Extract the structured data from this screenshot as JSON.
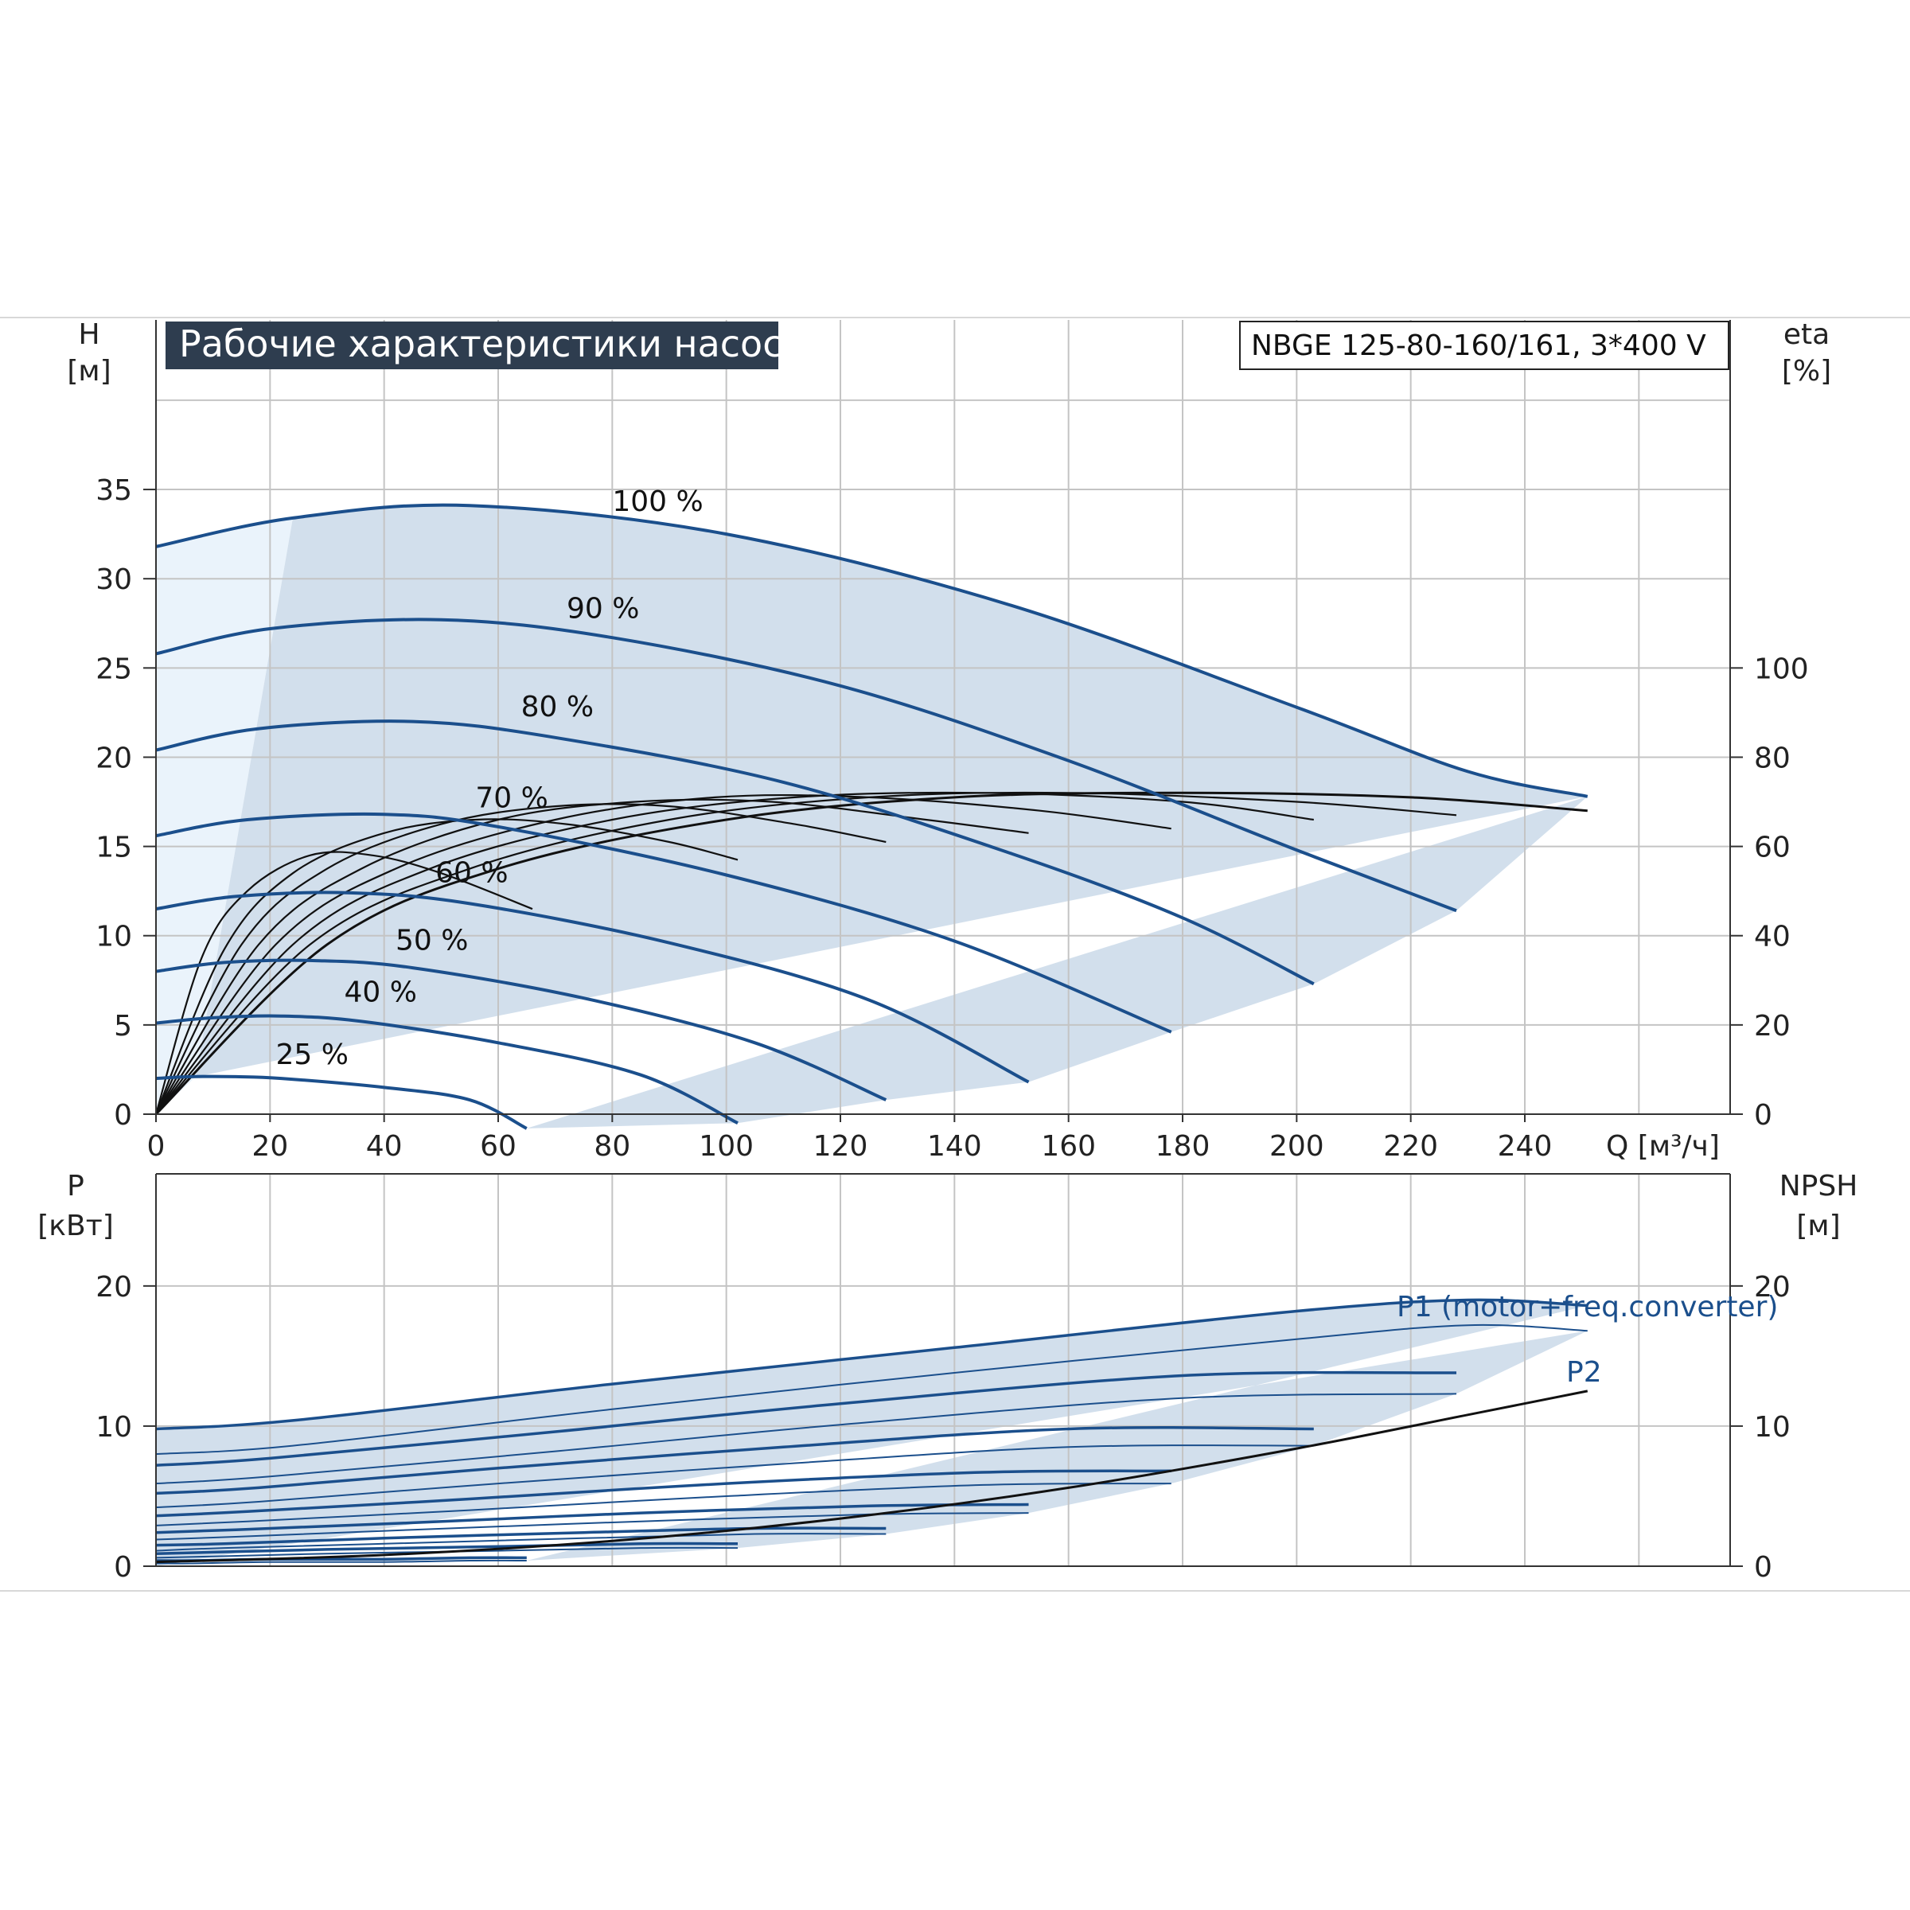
{
  "chart_data": [
    {
      "type": "line",
      "title": "Рабочие характеристики насоса",
      "model_label": "NBGE 125-80-160/161, 3*400 V",
      "xlabel": "Q [м³/ч]",
      "ylabel_line1": "H",
      "ylabel_line2": "[м]",
      "y2label_line1": "eta",
      "y2label_line2": "[%]",
      "xlim": [
        0,
        276
      ],
      "ylim": [
        0,
        44.5
      ],
      "y2lim": [
        0,
        100
      ],
      "x_ticks": [
        "0",
        "20",
        "40",
        "60",
        "80",
        "100",
        "120",
        "140",
        "160",
        "180",
        "200",
        "220",
        "240"
      ],
      "y_ticks": [
        "0",
        "5",
        "10",
        "15",
        "20",
        "25",
        "30",
        "35"
      ],
      "y2_ticks": [
        "0",
        "20",
        "40",
        "60",
        "80",
        "100"
      ],
      "grid": true,
      "speed_labels": [
        "100 %",
        "90 %",
        "80 %",
        "70 %",
        "60 %",
        "50 %",
        "40 %",
        "25 %"
      ],
      "head_curves": [
        {
          "speed": 100,
          "x": [
            0,
            24,
            55,
            100,
            150,
            200,
            230,
            251
          ],
          "y": [
            31.8,
            33.4,
            34.1,
            32.5,
            28.5,
            22.8,
            19.2,
            17.8
          ]
        },
        {
          "speed": 90,
          "x": [
            0,
            20,
            50,
            80,
            120,
            160,
            200,
            228
          ],
          "y": [
            25.8,
            27.2,
            27.7,
            26.7,
            24.0,
            19.8,
            14.8,
            11.4
          ]
        },
        {
          "speed": 80,
          "x": [
            0,
            18,
            45,
            70,
            110,
            150,
            180,
            203
          ],
          "y": [
            20.4,
            21.6,
            22.0,
            21.1,
            18.6,
            14.6,
            11.0,
            7.3
          ]
        },
        {
          "speed": 70,
          "x": [
            0,
            16,
            40,
            60,
            100,
            140,
            178
          ],
          "y": [
            15.6,
            16.5,
            16.8,
            16.1,
            13.4,
            9.7,
            4.6
          ]
        },
        {
          "speed": 60,
          "x": [
            0,
            14,
            34,
            55,
            90,
            125,
            153
          ],
          "y": [
            11.5,
            12.2,
            12.4,
            11.8,
            9.6,
            6.4,
            1.8
          ]
        },
        {
          "speed": 50,
          "x": [
            0,
            12,
            28,
            45,
            75,
            105,
            128
          ],
          "y": [
            8.0,
            8.5,
            8.6,
            8.2,
            6.5,
            4.0,
            0.8
          ]
        },
        {
          "speed": 40,
          "x": [
            0,
            10,
            22,
            36,
            60,
            85,
            102
          ],
          "y": [
            5.1,
            5.4,
            5.5,
            5.2,
            4.0,
            2.2,
            -0.5
          ]
        },
        {
          "speed": 25,
          "x": [
            0,
            6,
            14,
            22,
            40,
            55,
            65
          ],
          "y": [
            2.0,
            2.1,
            2.1,
            2.0,
            1.5,
            0.8,
            -0.8
          ]
        }
      ],
      "efficiency_curves": [
        {
          "speed": 100,
          "x": [
            0,
            30,
            60,
            100,
            140,
            180,
            220,
            251
          ],
          "eta": [
            0,
            38,
            55,
            66,
            71,
            72,
            71,
            68
          ]
        },
        {
          "speed": 90,
          "x": [
            0,
            27,
            55,
            90,
            125,
            160,
            200,
            228
          ],
          "eta": [
            0,
            38,
            55,
            66,
            71,
            72,
            70,
            67
          ]
        },
        {
          "speed": 80,
          "x": [
            0,
            24,
            48,
            80,
            112,
            145,
            180,
            203
          ],
          "eta": [
            0,
            38,
            55,
            66,
            71,
            72,
            70,
            66
          ]
        },
        {
          "speed": 70,
          "x": [
            0,
            21,
            42,
            70,
            98,
            125,
            155,
            178
          ],
          "eta": [
            0,
            38,
            55,
            66,
            71,
            71,
            68,
            64
          ]
        },
        {
          "speed": 60,
          "x": [
            0,
            18,
            36,
            60,
            84,
            108,
            135,
            153
          ],
          "eta": [
            0,
            38,
            55,
            66,
            70,
            70,
            66,
            63
          ]
        },
        {
          "speed": 50,
          "x": [
            0,
            15,
            30,
            50,
            70,
            90,
            112,
            128
          ],
          "eta": [
            0,
            38,
            55,
            65,
            69,
            69,
            65,
            61
          ]
        },
        {
          "speed": 40,
          "x": [
            0,
            12,
            24,
            40,
            56,
            72,
            90,
            102
          ],
          "eta": [
            0,
            37,
            54,
            63,
            66,
            65,
            61,
            57
          ]
        },
        {
          "speed": 25,
          "x": [
            0,
            8,
            16,
            27,
            38,
            50,
            66
          ],
          "eta": [
            0,
            35,
            50,
            58,
            58,
            54,
            46
          ]
        }
      ]
    },
    {
      "type": "line",
      "ylabel_line1": "P",
      "ylabel_line2": "[кВт]",
      "y2label_line1": "NPSH",
      "y2label_line2": "[м]",
      "xlim": [
        0,
        276
      ],
      "ylim": [
        0,
        28
      ],
      "y_ticks": [
        "0",
        "10",
        "20"
      ],
      "y2_ticks": [
        "0",
        "10",
        "20"
      ],
      "grid": true,
      "series_labels": [
        "P1 (motor+freq.converter)",
        "P2"
      ],
      "power_curves": [
        {
          "speed": 100,
          "x": [
            0,
            24,
            80,
            140,
            200,
            230,
            251
          ],
          "p1": [
            9.8,
            10.4,
            13.0,
            15.6,
            18.2,
            19.0,
            18.6
          ],
          "p2": [
            8.0,
            8.6,
            11.2,
            13.8,
            16.2,
            17.2,
            16.8
          ]
        },
        {
          "speed": 90,
          "x": [
            0,
            20,
            70,
            120,
            180,
            228
          ],
          "p1": [
            7.2,
            7.7,
            9.6,
            11.6,
            13.6,
            13.8
          ],
          "p2": [
            5.9,
            6.4,
            8.2,
            10.1,
            12.0,
            12.3
          ]
        },
        {
          "speed": 80,
          "x": [
            0,
            18,
            60,
            110,
            160,
            203
          ],
          "p1": [
            5.2,
            5.6,
            7.0,
            8.5,
            9.8,
            9.8
          ],
          "p2": [
            4.2,
            4.6,
            5.9,
            7.3,
            8.5,
            8.6
          ]
        },
        {
          "speed": 70,
          "x": [
            0,
            16,
            55,
            100,
            145,
            178
          ],
          "p1": [
            3.6,
            3.9,
            4.8,
            5.9,
            6.7,
            6.8
          ],
          "p2": [
            2.9,
            3.2,
            4.0,
            5.0,
            5.8,
            5.9
          ]
        },
        {
          "speed": 60,
          "x": [
            0,
            14,
            45,
            85,
            125,
            153
          ],
          "p1": [
            2.4,
            2.6,
            3.1,
            3.8,
            4.3,
            4.4
          ],
          "p2": [
            1.9,
            2.1,
            2.6,
            3.2,
            3.7,
            3.8
          ]
        },
        {
          "speed": 50,
          "x": [
            0,
            12,
            40,
            75,
            105,
            128
          ],
          "p1": [
            1.5,
            1.6,
            2.0,
            2.4,
            2.7,
            2.7
          ],
          "p2": [
            1.1,
            1.3,
            1.6,
            2.0,
            2.3,
            2.3
          ]
        },
        {
          "speed": 40,
          "x": [
            0,
            10,
            30,
            60,
            85,
            102
          ],
          "p1": [
            0.9,
            1.0,
            1.2,
            1.4,
            1.6,
            1.6
          ],
          "p2": [
            0.6,
            0.7,
            0.9,
            1.1,
            1.3,
            1.3
          ]
        },
        {
          "speed": 25,
          "x": [
            0,
            6,
            20,
            40,
            55,
            65
          ],
          "p1": [
            0.4,
            0.4,
            0.5,
            0.5,
            0.6,
            0.6
          ],
          "p2": [
            0.2,
            0.2,
            0.3,
            0.3,
            0.4,
            0.4
          ]
        }
      ],
      "npsh_curve": {
        "x": [
          0,
          40,
          80,
          120,
          160,
          200,
          230,
          251
        ],
        "y": [
          0.3,
          0.8,
          1.8,
          3.4,
          5.6,
          8.4,
          10.8,
          12.5
        ]
      }
    }
  ],
  "colors": {
    "curve_blue": "#1b4f8c",
    "curve_black": "#111111",
    "area_fill": "#d2dfec",
    "area_light": "#eaf3fb",
    "grid": "#c4c4c4",
    "title_bg": "#2e3d4f"
  }
}
